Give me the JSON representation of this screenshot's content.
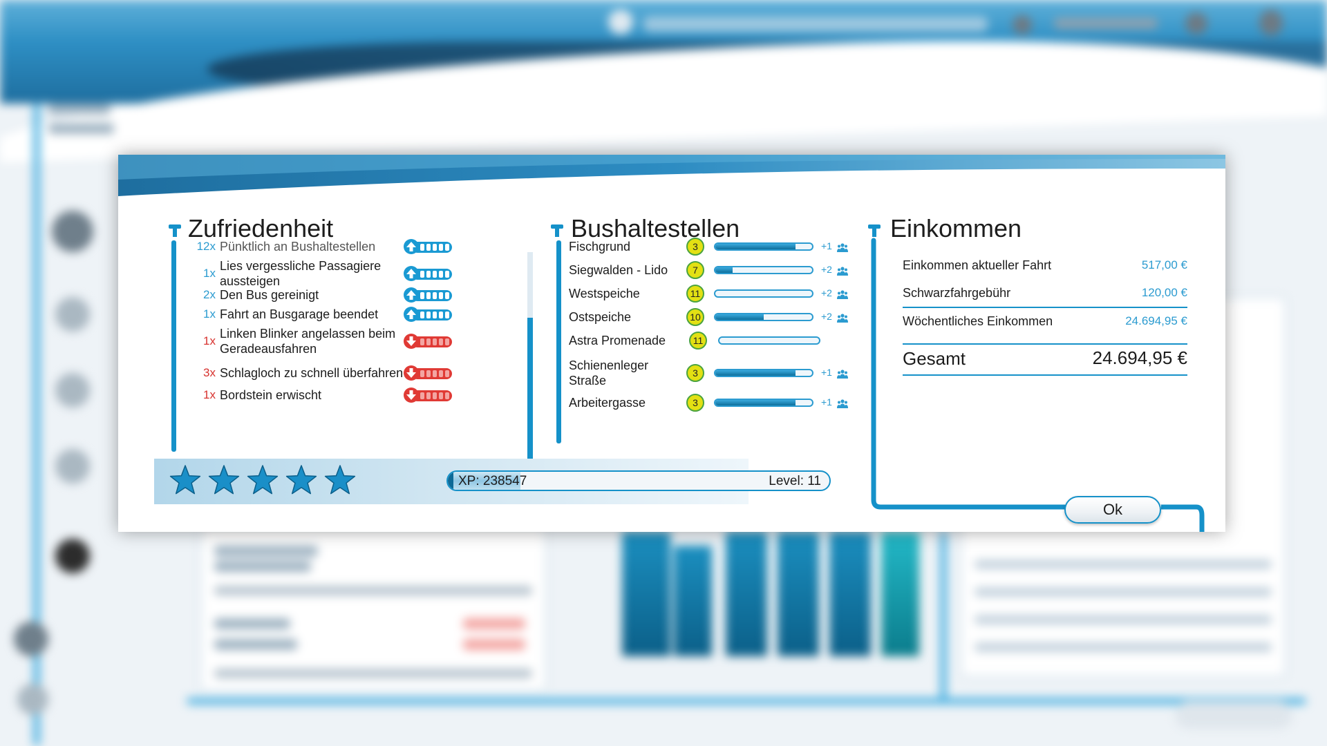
{
  "dialog": {
    "satisfaction": {
      "title": "Zufriedenheit",
      "items": [
        {
          "count": "12x",
          "label": "Pünktlich an Bushaltestellen",
          "effect": "positive"
        },
        {
          "count": "1x",
          "label": "Lies vergessliche Passagiere aussteigen",
          "effect": "positive"
        },
        {
          "count": "2x",
          "label": "Den Bus gereinigt",
          "effect": "positive"
        },
        {
          "count": "1x",
          "label": "Fahrt an Busgarage beendet",
          "effect": "positive"
        },
        {
          "count": "1x",
          "label": "Linken Blinker angelassen beim Geradeausfahren",
          "effect": "negative"
        },
        {
          "count": "3x",
          "label": "Schlagloch zu schnell überfahren",
          "effect": "negative"
        },
        {
          "count": "1x",
          "label": "Bordstein erwischt",
          "effect": "negative"
        }
      ]
    },
    "bus_stops": {
      "title": "Bushaltestellen",
      "items": [
        {
          "name": "Fischgrund",
          "badge": "3",
          "fill": 0.83,
          "bonus": "+1"
        },
        {
          "name": "Siegwalden - Lido",
          "badge": "7",
          "fill": 0.18,
          "bonus": "+2"
        },
        {
          "name": "Westspeiche",
          "badge": "11",
          "fill": 0.0,
          "bonus": "+2"
        },
        {
          "name": "Ostspeiche",
          "badge": "10",
          "fill": 0.5,
          "bonus": "+2"
        },
        {
          "name": "Astra Promenade",
          "badge": "11",
          "fill": 0.0,
          "bonus": ""
        },
        {
          "name": "Schienenleger Straße",
          "badge": "3",
          "fill": 0.83,
          "bonus": "+1"
        },
        {
          "name": "Arbeitergasse",
          "badge": "3",
          "fill": 0.83,
          "bonus": "+1"
        }
      ]
    },
    "income": {
      "title": "Einkommen",
      "rows": [
        {
          "label": "Einkommen aktueller Fahrt",
          "value": "517,00 €"
        },
        {
          "label": "Schwarzfahrgebühr",
          "value": "120,00 €"
        },
        {
          "label": "Wöchentliches Einkommen",
          "value": "24.694,95 €"
        }
      ],
      "total_label": "Gesamt",
      "total_value": "24.694,95 €"
    },
    "rating": {
      "stars": 5,
      "max_stars": 5
    },
    "progress": {
      "xp_text": "XP: 238547",
      "level_text": "Level: 11",
      "xp_fraction": 0.19
    },
    "ok_label": "Ok"
  },
  "colors": {
    "accent": "#1591c9",
    "positive": "#2b9bd0",
    "negative": "#d7322e",
    "badge": "#e3e013"
  }
}
